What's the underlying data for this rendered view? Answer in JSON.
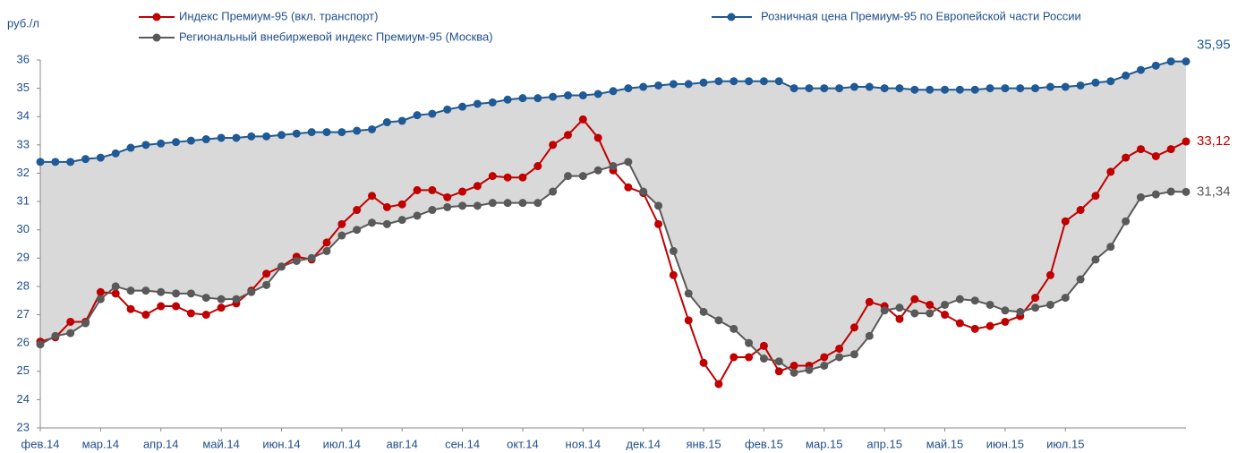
{
  "chart_data": {
    "type": "line",
    "y_label": "руб./л",
    "ylim": [
      23,
      36
    ],
    "yticks": [
      23,
      24,
      25,
      26,
      27,
      28,
      29,
      30,
      31,
      32,
      33,
      34,
      35,
      36
    ],
    "categories": [
      "фев.14",
      null,
      null,
      null,
      "мар.14",
      null,
      null,
      null,
      "апр.14",
      null,
      null,
      null,
      "май.14",
      null,
      null,
      null,
      "июн.14",
      null,
      null,
      null,
      "июл.14",
      null,
      null,
      null,
      "авг.14",
      null,
      null,
      null,
      "сен.14",
      null,
      null,
      null,
      "окт.14",
      null,
      null,
      null,
      "ноя.14",
      null,
      null,
      null,
      "дек.14",
      null,
      null,
      null,
      "янв.15",
      null,
      null,
      null,
      "фев.15",
      null,
      null,
      null,
      "мар.15",
      null,
      null,
      null,
      "апр.15",
      null,
      null,
      null,
      "май.15",
      null,
      null,
      null,
      "июн.15",
      null,
      null,
      null,
      "июл.15",
      null,
      null,
      null,
      null,
      null,
      null,
      null,
      null
    ],
    "series": [
      {
        "name": "Розничная цена Премиум-95  по Европейской части России",
        "color": "#1f5a96",
        "values": [
          32.4,
          32.4,
          32.4,
          32.5,
          32.55,
          32.7,
          32.9,
          33.0,
          33.05,
          33.1,
          33.15,
          33.2,
          33.25,
          33.25,
          33.3,
          33.3,
          33.35,
          33.4,
          33.45,
          33.45,
          33.45,
          33.5,
          33.55,
          33.8,
          33.85,
          34.05,
          34.1,
          34.25,
          34.35,
          34.45,
          34.5,
          34.6,
          34.65,
          34.65,
          34.7,
          34.75,
          34.75,
          34.8,
          34.9,
          35.0,
          35.05,
          35.1,
          35.15,
          35.15,
          35.2,
          35.25,
          35.25,
          35.25,
          35.25,
          35.25,
          35.0,
          35.0,
          35.0,
          35.0,
          35.05,
          35.05,
          35.0,
          35.0,
          34.95,
          34.95,
          34.95,
          34.95,
          34.95,
          35.0,
          35.0,
          35.0,
          35.0,
          35.05,
          35.05,
          35.1,
          35.2,
          35.25,
          35.45,
          35.65,
          35.8,
          35.95,
          35.95
        ],
        "value_labels": [
          null,
          null,
          null,
          null,
          null,
          null,
          null,
          null,
          null,
          null,
          null,
          null,
          null,
          null,
          null,
          null,
          null,
          null,
          null,
          null,
          null,
          null,
          null,
          null,
          null,
          null,
          null,
          null,
          null,
          null,
          null,
          null,
          null,
          null,
          null,
          null,
          null,
          null,
          null,
          null,
          null,
          null,
          null,
          null,
          null,
          null,
          null,
          null,
          null,
          null,
          null,
          null,
          null,
          null,
          null,
          null,
          null,
          null,
          null,
          null,
          null,
          null,
          null,
          null,
          null,
          null,
          null,
          null,
          null,
          null,
          null,
          null,
          null,
          null,
          null,
          null,
          "35,95"
        ]
      },
      {
        "name": "Индекс Премиум-95 (вкл. транспорт)",
        "color": "#c00000",
        "values": [
          26.05,
          26.2,
          26.75,
          26.75,
          27.8,
          27.75,
          27.2,
          27.0,
          27.3,
          27.3,
          27.05,
          27.0,
          27.25,
          27.4,
          27.85,
          28.45,
          28.7,
          29.05,
          28.95,
          29.55,
          30.2,
          30.7,
          31.2,
          30.8,
          30.9,
          31.4,
          31.4,
          31.15,
          31.35,
          31.55,
          31.9,
          31.85,
          31.85,
          32.25,
          33.0,
          33.35,
          33.9,
          33.25,
          32.1,
          31.5,
          31.3,
          30.2,
          28.4,
          26.8,
          25.3,
          24.55,
          25.5,
          25.5,
          25.9,
          25.0,
          25.2,
          25.2,
          25.5,
          25.8,
          26.55,
          27.45,
          27.3,
          26.85,
          27.55,
          27.35,
          27.0,
          26.7,
          26.5,
          26.6,
          26.75,
          26.95,
          27.6,
          28.4,
          30.3,
          30.7,
          31.2,
          32.05,
          32.55,
          32.85,
          32.6,
          32.85,
          33.12
        ],
        "value_labels": [
          null,
          null,
          null,
          null,
          null,
          null,
          null,
          null,
          null,
          null,
          null,
          null,
          null,
          null,
          null,
          null,
          null,
          null,
          null,
          null,
          null,
          null,
          null,
          null,
          null,
          null,
          null,
          null,
          null,
          null,
          null,
          null,
          null,
          null,
          null,
          null,
          null,
          null,
          null,
          null,
          null,
          null,
          null,
          null,
          null,
          null,
          null,
          null,
          null,
          null,
          null,
          null,
          null,
          null,
          null,
          null,
          null,
          null,
          null,
          null,
          null,
          null,
          null,
          null,
          null,
          null,
          null,
          null,
          null,
          null,
          null,
          null,
          null,
          null,
          null,
          null,
          "33,12"
        ]
      },
      {
        "name": "Региональный  внебиржевой  индекс Премиум-95  (Москва)",
        "color": "#595959",
        "values": [
          25.95,
          26.25,
          26.35,
          26.7,
          27.55,
          28.0,
          27.85,
          27.85,
          27.8,
          27.75,
          27.75,
          27.6,
          27.55,
          27.55,
          27.8,
          28.05,
          28.7,
          28.9,
          29.0,
          29.25,
          29.8,
          30.0,
          30.25,
          30.2,
          30.35,
          30.5,
          30.7,
          30.8,
          30.85,
          30.85,
          30.95,
          30.95,
          30.95,
          30.95,
          31.35,
          31.9,
          31.9,
          32.1,
          32.25,
          32.4,
          31.35,
          30.85,
          29.25,
          27.75,
          27.1,
          26.8,
          26.5,
          26.0,
          25.45,
          25.35,
          24.95,
          25.05,
          25.2,
          25.5,
          25.6,
          26.25,
          27.15,
          27.25,
          27.05,
          27.05,
          27.35,
          27.55,
          27.5,
          27.35,
          27.15,
          27.1,
          27.25,
          27.35,
          27.6,
          28.25,
          28.95,
          29.4,
          30.3,
          31.15,
          31.25,
          31.35,
          31.34
        ],
        "value_labels": [
          null,
          null,
          null,
          null,
          null,
          null,
          null,
          null,
          null,
          null,
          null,
          null,
          null,
          null,
          null,
          null,
          null,
          null,
          null,
          null,
          null,
          null,
          null,
          null,
          null,
          null,
          null,
          null,
          null,
          null,
          null,
          null,
          null,
          null,
          null,
          null,
          null,
          null,
          null,
          null,
          null,
          null,
          null,
          null,
          null,
          null,
          null,
          null,
          null,
          null,
          null,
          null,
          null,
          null,
          null,
          null,
          null,
          null,
          null,
          null,
          null,
          null,
          null,
          null,
          null,
          null,
          null,
          null,
          null,
          null,
          null,
          null,
          null,
          null,
          null,
          null,
          "31,34"
        ]
      }
    ]
  }
}
